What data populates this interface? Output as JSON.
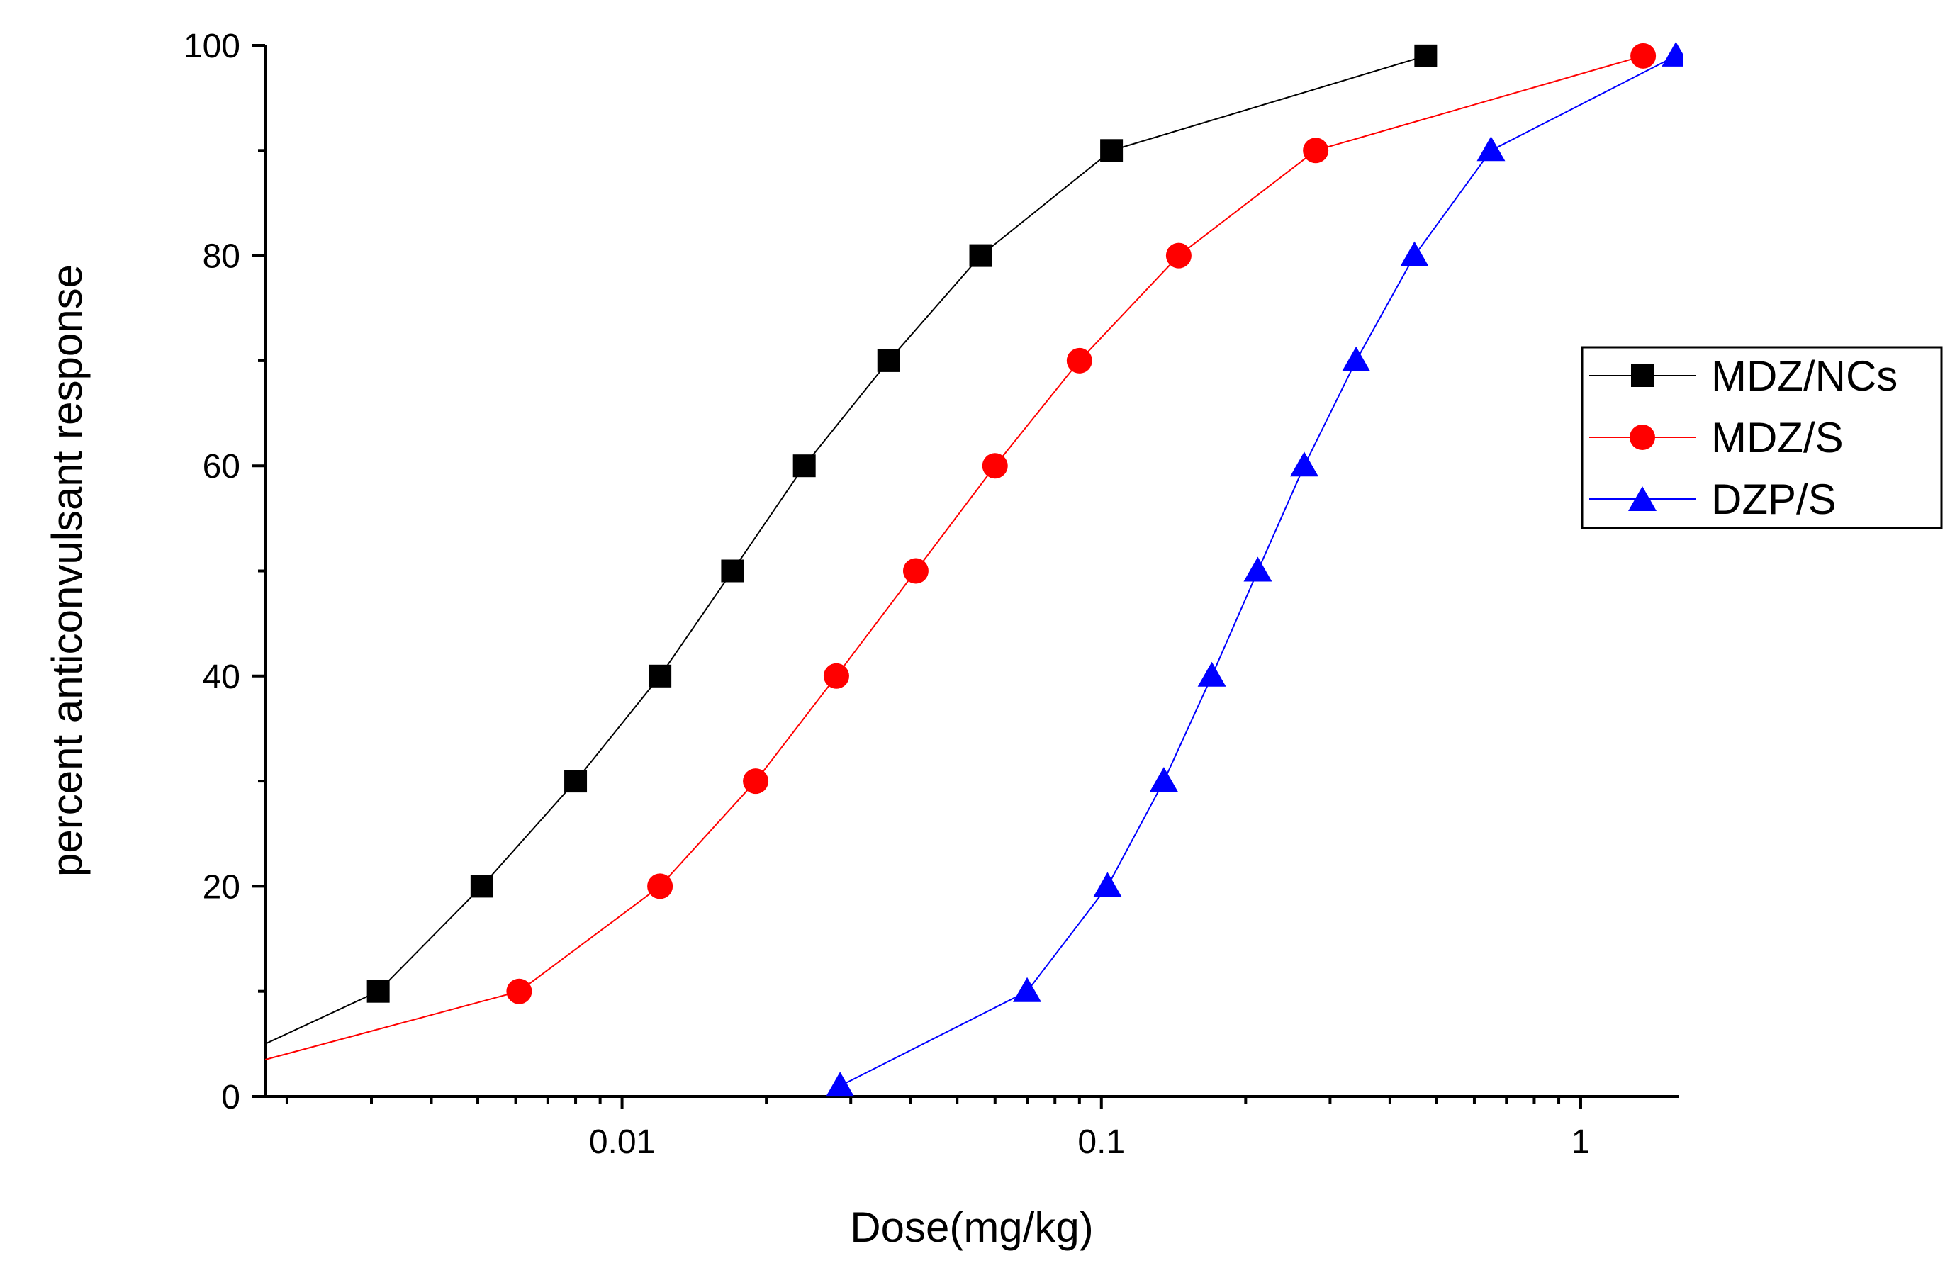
{
  "chart_data": {
    "type": "line",
    "title": "",
    "xlabel": "Dose(mg/kg)",
    "ylabel": "percent anticonvulsant response",
    "xscale": "log",
    "xlim": [
      0.0018,
      1.6
    ],
    "ylim": [
      0,
      100
    ],
    "x_tick_labels": [
      {
        "value": 0.01,
        "label": "0.01"
      },
      {
        "value": 0.1,
        "label": "0.1"
      },
      {
        "value": 1,
        "label": "1"
      }
    ],
    "y_tick_labels": [
      {
        "value": 0,
        "label": "0"
      },
      {
        "value": 20,
        "label": "20"
      },
      {
        "value": 40,
        "label": "40"
      },
      {
        "value": 60,
        "label": "60"
      },
      {
        "value": 80,
        "label": "80"
      },
      {
        "value": 100,
        "label": "100"
      }
    ],
    "grid": false,
    "legend_position": "right",
    "series": [
      {
        "name": "MDZ/NCs",
        "color": "#000000",
        "marker": "square",
        "line_start": {
          "x": 0.0018,
          "y": 5
        },
        "x": [
          0.0031,
          0.0051,
          0.008,
          0.012,
          0.017,
          0.024,
          0.036,
          0.056,
          0.105,
          0.475
        ],
        "y": [
          10,
          20,
          30,
          40,
          50,
          60,
          70,
          80,
          90,
          99
        ]
      },
      {
        "name": "MDZ/S",
        "color": "#ff0000",
        "marker": "circle",
        "line_start": {
          "x": 0.0018,
          "y": 3.5
        },
        "x": [
          0.0061,
          0.012,
          0.019,
          0.028,
          0.041,
          0.06,
          0.09,
          0.145,
          0.28,
          1.35
        ],
        "y": [
          10,
          20,
          30,
          40,
          50,
          60,
          70,
          80,
          90,
          99
        ]
      },
      {
        "name": "DZP/S",
        "color": "#0000ff",
        "marker": "triangle",
        "x": [
          0.0285,
          0.07,
          0.103,
          0.135,
          0.17,
          0.212,
          0.265,
          0.34,
          0.45,
          0.65,
          1.58
        ],
        "y": [
          1,
          10,
          20,
          30,
          40,
          50,
          60,
          70,
          80,
          90,
          99
        ]
      }
    ]
  }
}
